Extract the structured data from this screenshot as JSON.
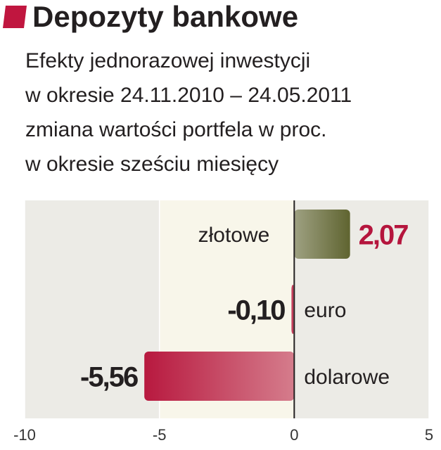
{
  "chart_data": {
    "type": "hbar",
    "title": "Depozyty bankowe",
    "subtitle": [
      "Efekty jednorazowej inwestycji",
      "w okresie 24.11.2010 – 24.05.2011",
      "zmiana wartości portfela w proc.",
      "w okresie sześciu miesięcy"
    ],
    "categories": [
      "złotowe",
      "euro",
      "dolarowe"
    ],
    "values": [
      2.07,
      -0.1,
      -5.56
    ],
    "value_labels": [
      "2,07",
      "-0,10",
      "-5,56"
    ],
    "colors": [
      "#5f6430",
      "#b8193f",
      "#b8193f"
    ],
    "xlim": [
      -10,
      5
    ],
    "xticks": [
      -10,
      -5,
      0,
      5
    ]
  }
}
